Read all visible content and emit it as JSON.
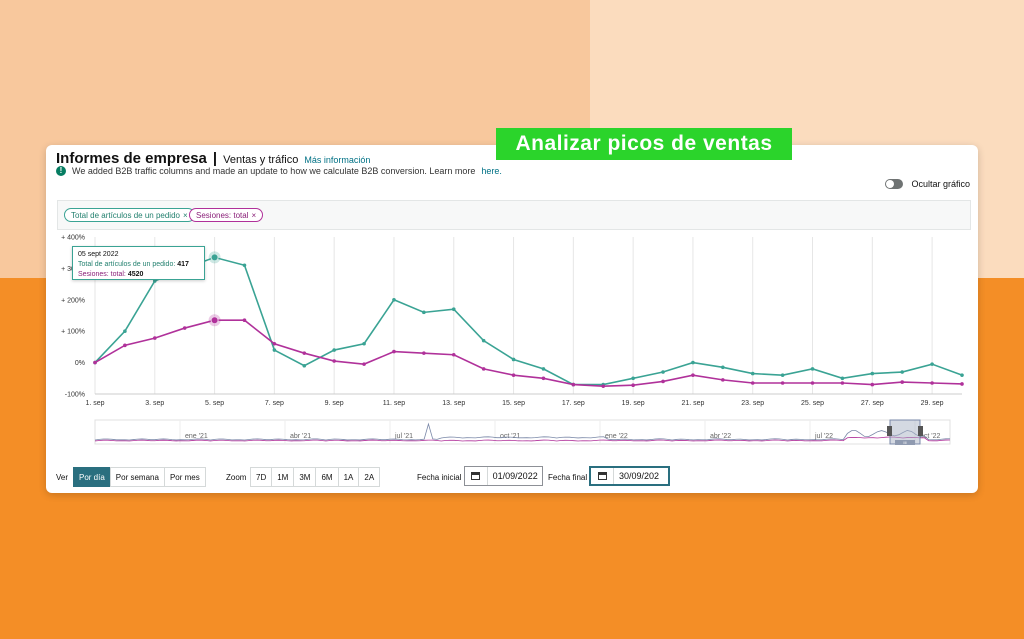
{
  "banner": {
    "text": "Analizar picos de ventas"
  },
  "header": {
    "title": "Informes de empresa",
    "separator": "|",
    "subtitle": "Ventas y tráfico",
    "more_link": "Más información"
  },
  "notice": {
    "icon": "exclamation-icon",
    "text": "We added B2B traffic columns and made an update to how we calculate B2B conversion. Learn more",
    "link": "here."
  },
  "toggle": {
    "label": "Ocultar gráfico",
    "on": false
  },
  "filters": [
    {
      "label": "Total de artículos de un pedido",
      "remove": "×",
      "color": "#3aa394"
    },
    {
      "label": "Sesiones: total",
      "remove": "×",
      "color": "#b0319a"
    }
  ],
  "chart_data": {
    "type": "line",
    "x": [
      "1. sep",
      "2. sep",
      "3. sep",
      "4. sep",
      "5. sep",
      "6. sep",
      "7. sep",
      "8. sep",
      "9. sep",
      "10. sep",
      "11. sep",
      "12. sep",
      "13. sep",
      "14. sep",
      "15. sep",
      "16. sep",
      "17. sep",
      "18. sep",
      "19. sep",
      "20. sep",
      "21. sep",
      "22. sep",
      "23. sep",
      "24. sep",
      "25. sep",
      "26. sep",
      "27. sep",
      "28. sep",
      "29. sep",
      "30. sep"
    ],
    "x_tick_labels": [
      "1. sep",
      "3. sep",
      "5. sep",
      "7. sep",
      "9. sep",
      "11. sep",
      "13. sep",
      "15. sep",
      "17. sep",
      "19. sep",
      "21. sep",
      "23. sep",
      "25. sep",
      "27. sep",
      "29. sep"
    ],
    "y_ticks": [
      -100,
      0,
      100,
      200,
      300,
      400
    ],
    "y_tick_labels": [
      "-100%",
      "0%",
      "+ 100%",
      "+ 200%",
      "+ 300%",
      "+ 400%"
    ],
    "ylim": [
      -100,
      400
    ],
    "grid": true,
    "series": [
      {
        "name": "Total de artículos de un pedido",
        "color": "#3aa394",
        "values": [
          0,
          100,
          260,
          300,
          335,
          310,
          40,
          -10,
          40,
          60,
          200,
          160,
          170,
          70,
          10,
          -20,
          -70,
          -70,
          -50,
          -30,
          0,
          -15,
          -35,
          -40,
          -20,
          -50,
          -35,
          -30,
          -5,
          -40
        ]
      },
      {
        "name": "Sesiones: total",
        "color": "#b0319a",
        "values": [
          0,
          55,
          78,
          110,
          135,
          135,
          60,
          30,
          5,
          -5,
          35,
          30,
          25,
          -20,
          -40,
          -50,
          -70,
          -75,
          -72,
          -60,
          -40,
          -55,
          -65,
          -65,
          -65,
          -65,
          -70,
          -62,
          -65,
          -68
        ]
      }
    ],
    "highlight_index": 4,
    "tooltip": {
      "date": "05 sept 2022",
      "rows": [
        {
          "label": "Total de artículos de un pedido:",
          "value": "417"
        },
        {
          "label": "Sesiones: total:",
          "value": "4520"
        }
      ]
    },
    "navigator": {
      "labels": [
        "ene '21",
        "abr '21",
        "jul '21",
        "oct '21",
        "ene '22",
        "abr '22",
        "jul '22",
        "oct '22"
      ],
      "handle_label": "III"
    }
  },
  "controls": {
    "view_label": "Ver",
    "view_buttons": [
      "Por día",
      "Por semana",
      "Por mes"
    ],
    "zoom_label": "Zoom",
    "zoom_buttons": [
      "7D",
      "1M",
      "3M",
      "6M",
      "1A",
      "2A"
    ],
    "start_label": "Fecha inicial",
    "start_value": "01/09/2022",
    "end_label": "Fecha final",
    "end_value": "30/09/202"
  }
}
